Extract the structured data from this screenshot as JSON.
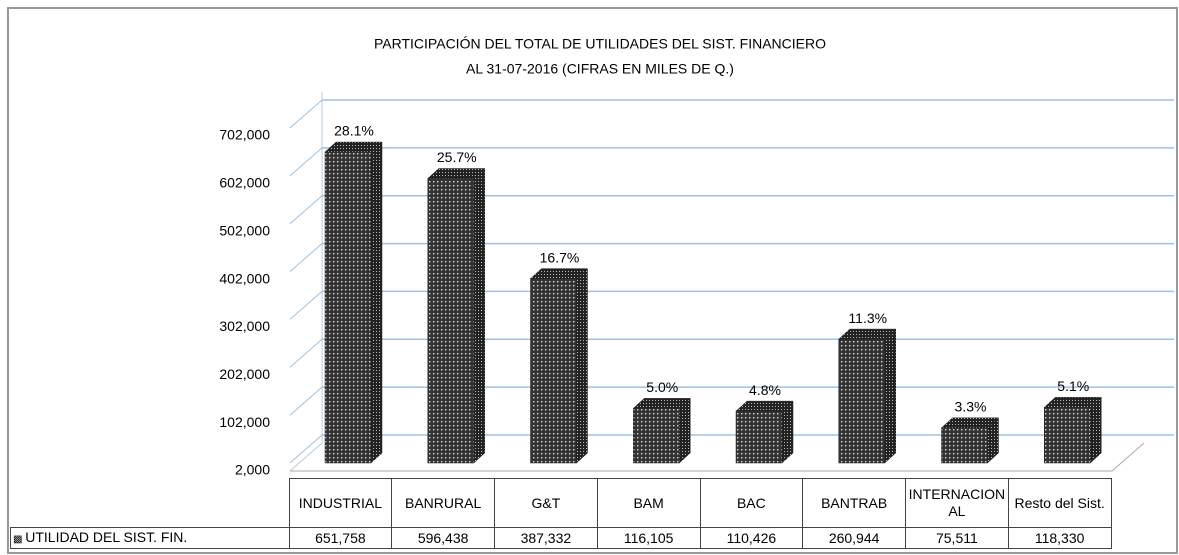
{
  "chart_data": {
    "type": "bar3d",
    "title": "PARTICIPACIÓN DEL TOTAL DE UTILIDADES DEL SIST. FINANCIERO",
    "subtitle": "AL 31-07-2016  (CIFRAS EN MILES DE Q.)",
    "categories": [
      "INDUSTRIAL",
      "BANRURAL",
      "G&T",
      "BAM",
      "BAC",
      "BANTRAB",
      "INTERNACIONAL",
      "Resto del Sist."
    ],
    "series": [
      {
        "name": "UTILIDAD DEL SIST. FIN.",
        "color": "#555555",
        "values": [
          651758,
          596438,
          387332,
          116105,
          110426,
          260944,
          75511,
          118330
        ],
        "value_labels": [
          "651,758",
          "596,438",
          "387,332",
          "116,105",
          "110,426",
          "260,944",
          "75,511",
          "118,330"
        ],
        "data_labels": [
          "28.1%",
          "25.7%",
          "16.7%",
          "5.0%",
          "4.8%",
          "11.3%",
          "3.3%",
          "5.1%"
        ]
      }
    ],
    "ylim": [
      2000,
      702000
    ],
    "yticks": [
      {
        "value": 2000,
        "label": "2,000"
      },
      {
        "value": 102000,
        "label": "102,000"
      },
      {
        "value": 202000,
        "label": "202,000"
      },
      {
        "value": 302000,
        "label": "302,000"
      },
      {
        "value": 402000,
        "label": "402,000"
      },
      {
        "value": 502000,
        "label": "502,000"
      },
      {
        "value": 602000,
        "label": "602,000"
      },
      {
        "value": 702000,
        "label": "702,000"
      }
    ],
    "grid": true
  }
}
